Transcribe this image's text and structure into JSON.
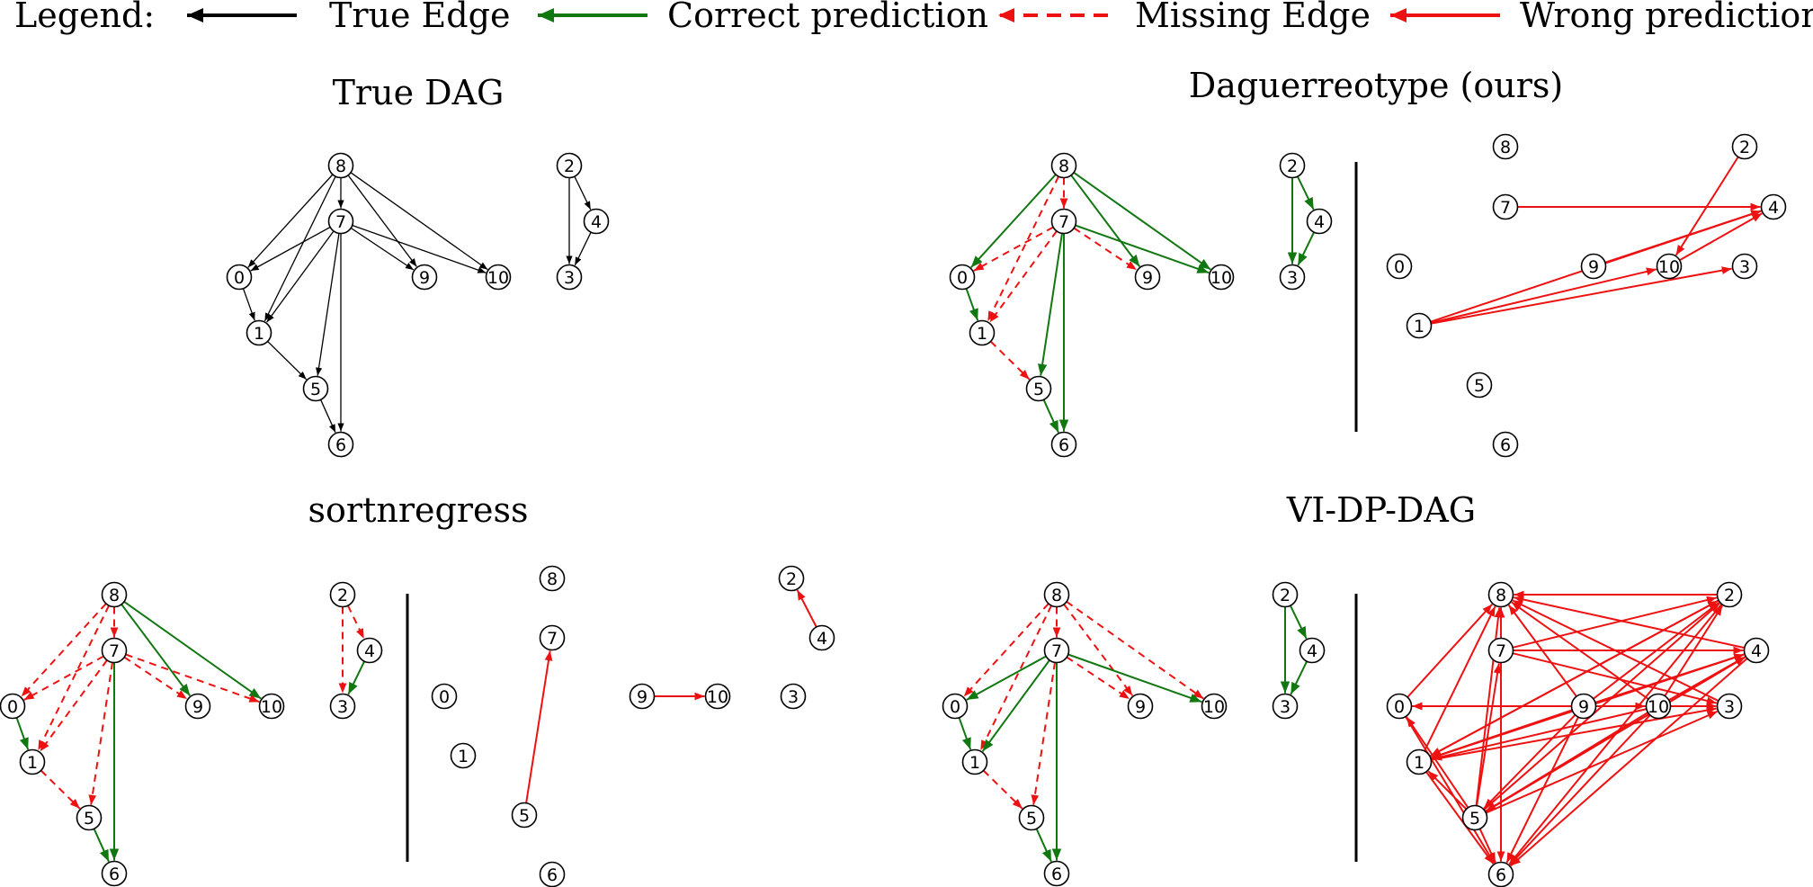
{
  "colors": {
    "true": "#000000",
    "correct": "#117711",
    "missing": "#ee1111",
    "wrong": "#ee1111"
  },
  "legend": {
    "title": "Legend:",
    "items": [
      {
        "label": "True Edge",
        "style": "true"
      },
      {
        "label": "Correct prediction",
        "style": "correct"
      },
      {
        "label": "Missing Edge",
        "style": "missing"
      },
      {
        "label": "Wrong prediction",
        "style": "wrong"
      }
    ]
  },
  "panels": {
    "true_dag": {
      "title": "True DAG",
      "edges": [
        [
          "8",
          "0",
          "true"
        ],
        [
          "8",
          "7",
          "true"
        ],
        [
          "8",
          "1",
          "true"
        ],
        [
          "8",
          "9",
          "true"
        ],
        [
          "8",
          "10",
          "true"
        ],
        [
          "7",
          "0",
          "true"
        ],
        [
          "7",
          "1",
          "true"
        ],
        [
          "7",
          "5",
          "true"
        ],
        [
          "7",
          "6",
          "true"
        ],
        [
          "7",
          "9",
          "true"
        ],
        [
          "7",
          "10",
          "true"
        ],
        [
          "0",
          "1",
          "true"
        ],
        [
          "1",
          "5",
          "true"
        ],
        [
          "5",
          "6",
          "true"
        ],
        [
          "2",
          "4",
          "true"
        ],
        [
          "2",
          "3",
          "true"
        ],
        [
          "4",
          "3",
          "true"
        ]
      ]
    },
    "daguerreotype": {
      "title": "Daguerreotype (ours)",
      "edges": [
        [
          "8",
          "0",
          "correct"
        ],
        [
          "8",
          "9",
          "correct"
        ],
        [
          "8",
          "10",
          "correct"
        ],
        [
          "8",
          "7",
          "missing"
        ],
        [
          "8",
          "1",
          "missing"
        ],
        [
          "7",
          "0",
          "missing"
        ],
        [
          "7",
          "1",
          "missing"
        ],
        [
          "7",
          "9",
          "missing"
        ],
        [
          "7",
          "10",
          "correct"
        ],
        [
          "7",
          "5",
          "correct"
        ],
        [
          "7",
          "6",
          "correct"
        ],
        [
          "0",
          "1",
          "correct"
        ],
        [
          "1",
          "5",
          "missing"
        ],
        [
          "5",
          "6",
          "correct"
        ],
        [
          "2",
          "4",
          "correct"
        ],
        [
          "2",
          "3",
          "correct"
        ],
        [
          "4",
          "3",
          "correct"
        ]
      ],
      "predicted_edges": [
        [
          "7",
          "4"
        ],
        [
          "2",
          "10"
        ],
        [
          "9",
          "4"
        ],
        [
          "1",
          "4"
        ],
        [
          "1",
          "10"
        ],
        [
          "1",
          "3"
        ],
        [
          "10",
          "4"
        ]
      ]
    },
    "sortnregress": {
      "title": "sortnregress",
      "edges": [
        [
          "8",
          "0",
          "missing"
        ],
        [
          "8",
          "7",
          "missing"
        ],
        [
          "8",
          "1",
          "missing"
        ],
        [
          "8",
          "9",
          "correct"
        ],
        [
          "8",
          "10",
          "correct"
        ],
        [
          "7",
          "0",
          "missing"
        ],
        [
          "7",
          "1",
          "missing"
        ],
        [
          "7",
          "5",
          "missing"
        ],
        [
          "7",
          "9",
          "missing"
        ],
        [
          "7",
          "10",
          "missing"
        ],
        [
          "7",
          "6",
          "correct"
        ],
        [
          "0",
          "1",
          "correct"
        ],
        [
          "1",
          "5",
          "missing"
        ],
        [
          "5",
          "6",
          "correct"
        ],
        [
          "2",
          "4",
          "missing"
        ],
        [
          "2",
          "3",
          "missing"
        ],
        [
          "4",
          "3",
          "correct"
        ]
      ],
      "predicted_edges": [
        [
          "5",
          "7"
        ],
        [
          "4",
          "2"
        ],
        [
          "9",
          "10"
        ]
      ]
    },
    "vidpdag": {
      "title": "VI-DP-DAG",
      "edges": [
        [
          "8",
          "0",
          "missing"
        ],
        [
          "8",
          "7",
          "missing"
        ],
        [
          "8",
          "1",
          "missing"
        ],
        [
          "8",
          "9",
          "missing"
        ],
        [
          "8",
          "10",
          "missing"
        ],
        [
          "7",
          "0",
          "correct"
        ],
        [
          "7",
          "1",
          "correct"
        ],
        [
          "7",
          "5",
          "missing"
        ],
        [
          "7",
          "9",
          "missing"
        ],
        [
          "7",
          "10",
          "correct"
        ],
        [
          "7",
          "6",
          "correct"
        ],
        [
          "0",
          "1",
          "correct"
        ],
        [
          "1",
          "5",
          "missing"
        ],
        [
          "5",
          "6",
          "correct"
        ],
        [
          "2",
          "4",
          "correct"
        ],
        [
          "2",
          "3",
          "correct"
        ],
        [
          "4",
          "3",
          "correct"
        ]
      ],
      "predicted_edges": [
        [
          "7",
          "8"
        ],
        [
          "9",
          "8"
        ],
        [
          "10",
          "8"
        ],
        [
          "2",
          "8"
        ],
        [
          "4",
          "8"
        ],
        [
          "3",
          "8"
        ],
        [
          "5",
          "8"
        ],
        [
          "0",
          "8"
        ],
        [
          "1",
          "8"
        ],
        [
          "7",
          "2"
        ],
        [
          "7",
          "4"
        ],
        [
          "7",
          "3"
        ],
        [
          "7",
          "6"
        ],
        [
          "5",
          "7"
        ],
        [
          "9",
          "0"
        ],
        [
          "9",
          "2"
        ],
        [
          "9",
          "4"
        ],
        [
          "9",
          "3"
        ],
        [
          "9",
          "10"
        ],
        [
          "9",
          "6"
        ],
        [
          "9",
          "1"
        ],
        [
          "9",
          "5"
        ],
        [
          "10",
          "0"
        ],
        [
          "10",
          "2"
        ],
        [
          "10",
          "4"
        ],
        [
          "10",
          "3"
        ],
        [
          "10",
          "5"
        ],
        [
          "10",
          "6"
        ],
        [
          "10",
          "1"
        ],
        [
          "5",
          "2"
        ],
        [
          "5",
          "4"
        ],
        [
          "5",
          "3"
        ],
        [
          "5",
          "0"
        ],
        [
          "5",
          "1"
        ],
        [
          "5",
          "6"
        ],
        [
          "1",
          "2"
        ],
        [
          "1",
          "4"
        ],
        [
          "1",
          "3"
        ],
        [
          "1",
          "6"
        ],
        [
          "0",
          "3"
        ],
        [
          "0",
          "6"
        ],
        [
          "2",
          "6"
        ],
        [
          "4",
          "6"
        ],
        [
          "4",
          "5"
        ],
        [
          "2",
          "1"
        ]
      ]
    }
  }
}
